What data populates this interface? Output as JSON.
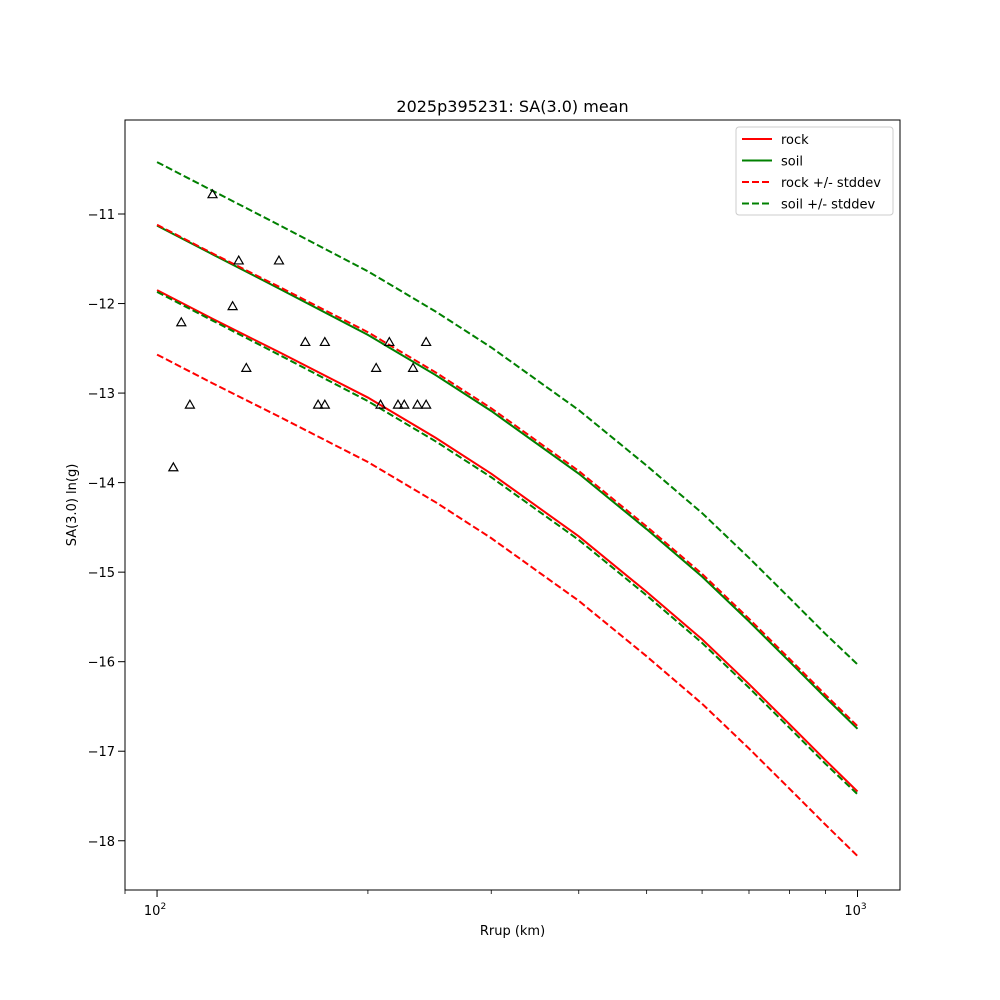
{
  "chart_data": {
    "type": "line",
    "title": "2025p395231: SA(3.0) mean",
    "xlabel": "Rrup (km)",
    "ylabel": "SA(3.0) ln(g)",
    "xscale": "log",
    "xlim": [
      90,
      1150
    ],
    "ylim": [
      -18.55,
      -9.95
    ],
    "x_ticks": [
      {
        "value": 100,
        "base": "10",
        "exp": "2"
      },
      {
        "value": 1000,
        "base": "10",
        "exp": "3"
      }
    ],
    "y_ticks": [
      -11,
      -12,
      -13,
      -14,
      -15,
      -16,
      -17,
      -18
    ],
    "y_tick_labels": [
      "−11",
      "−12",
      "−13",
      "−14",
      "−15",
      "−16",
      "−17",
      "−18"
    ],
    "grid": false,
    "legend_position": "top-right",
    "legend": [
      {
        "label": "rock",
        "color": "#ff0000",
        "dash": "solid"
      },
      {
        "label": "soil",
        "color": "#008000",
        "dash": "solid"
      },
      {
        "label": "rock +/- stddev",
        "color": "#ff0000",
        "dash": "dashed"
      },
      {
        "label": "soil +/- stddev",
        "color": "#008000",
        "dash": "dashed"
      }
    ],
    "x": [
      100,
      120,
      150,
      200,
      250,
      300,
      400,
      500,
      600,
      700,
      800,
      900,
      1000
    ],
    "series": [
      {
        "name": "rock",
        "role": "mean",
        "color": "#ff0000",
        "dash": "solid",
        "values": [
          -11.85,
          -12.17,
          -12.55,
          -13.05,
          -13.5,
          -13.9,
          -14.6,
          -15.22,
          -15.75,
          -16.25,
          -16.7,
          -17.1,
          -17.45
        ]
      },
      {
        "name": "soil",
        "role": "mean",
        "color": "#008000",
        "dash": "solid",
        "values": [
          -11.13,
          -11.45,
          -11.84,
          -12.35,
          -12.8,
          -13.2,
          -13.9,
          -14.52,
          -15.05,
          -15.55,
          -16.0,
          -16.4,
          -16.75
        ]
      },
      {
        "name": "rock +/- stddev",
        "role": "upper",
        "color": "#ff0000",
        "dash": "dashed",
        "values": [
          -11.12,
          -11.44,
          -11.82,
          -12.32,
          -12.77,
          -13.17,
          -13.87,
          -14.49,
          -15.02,
          -15.52,
          -15.97,
          -16.37,
          -16.72
        ]
      },
      {
        "name": "rock +/- stddev",
        "role": "lower",
        "color": "#ff0000",
        "dash": "dashed",
        "values": [
          -12.57,
          -12.89,
          -13.27,
          -13.77,
          -14.22,
          -14.62,
          -15.32,
          -15.94,
          -16.47,
          -16.97,
          -17.42,
          -17.82,
          -18.17
        ]
      },
      {
        "name": "soil +/- stddev",
        "role": "upper",
        "color": "#008000",
        "dash": "dashed",
        "values": [
          -10.42,
          -10.74,
          -11.13,
          -11.64,
          -12.09,
          -12.49,
          -13.19,
          -13.81,
          -14.34,
          -14.84,
          -15.29,
          -15.69,
          -16.03
        ]
      },
      {
        "name": "soil +/- stddev",
        "role": "lower",
        "color": "#008000",
        "dash": "dashed",
        "values": [
          -11.87,
          -12.19,
          -12.58,
          -13.09,
          -13.54,
          -13.94,
          -14.64,
          -15.26,
          -15.79,
          -16.29,
          -16.74,
          -17.14,
          -17.48
        ]
      }
    ],
    "observations": {
      "marker": "triangle",
      "color": "#000000",
      "points": [
        {
          "x": 105.5,
          "y": -13.83
        },
        {
          "x": 108.3,
          "y": -12.21
        },
        {
          "x": 111.4,
          "y": -13.13
        },
        {
          "x": 120.0,
          "y": -10.78
        },
        {
          "x": 128.2,
          "y": -12.03
        },
        {
          "x": 130.8,
          "y": -11.52
        },
        {
          "x": 134.1,
          "y": -12.72
        },
        {
          "x": 149.3,
          "y": -11.52
        },
        {
          "x": 162.8,
          "y": -12.43
        },
        {
          "x": 169.8,
          "y": -13.13
        },
        {
          "x": 173.6,
          "y": -12.43
        },
        {
          "x": 173.6,
          "y": -13.13
        },
        {
          "x": 205.5,
          "y": -12.72
        },
        {
          "x": 208.5,
          "y": -13.13
        },
        {
          "x": 214.6,
          "y": -12.43
        },
        {
          "x": 220.8,
          "y": -13.13
        },
        {
          "x": 225.4,
          "y": -13.13
        },
        {
          "x": 232.0,
          "y": -12.72
        },
        {
          "x": 235.4,
          "y": -13.13
        },
        {
          "x": 242.2,
          "y": -12.43
        },
        {
          "x": 242.2,
          "y": -13.13
        }
      ]
    }
  }
}
